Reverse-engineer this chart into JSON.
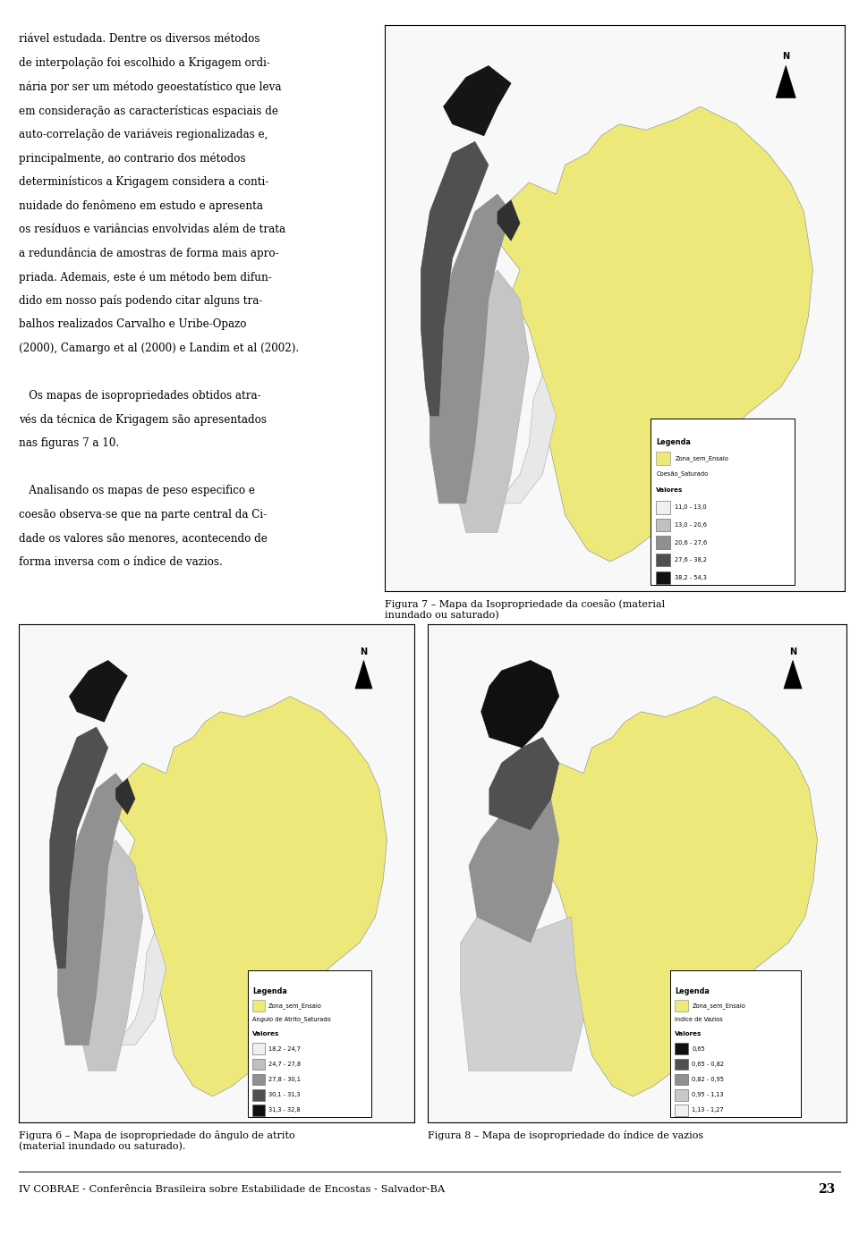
{
  "background_color": "#ffffff",
  "page_width": 9.6,
  "page_height": 13.91,
  "text_lines": [
    "riável estudada. Dentre os diversos métodos",
    "de interpolação foi escolhido a Krigagem ordi-",
    "nária por ser um método geoestatístico que leva",
    "em consideração as características espaciais de",
    "auto-correlação de variáveis regionalizadas e,",
    "principalmente, ao contrario dos métodos",
    "determinísticos a Krigagem considera a conti-",
    "nuidade do fenômeno em estudo e apresenta",
    "os resíduos e variâncias envolvidas além de trata",
    "a redundância de amostras de forma mais apro-",
    "priada. Ademais, este é um método bem difun-",
    "dido em nosso país podendo citar alguns tra-",
    "balhos realizados Carvalho e Uribe-Opazo",
    "(2000), Camargo et al (2000) e Landim et al (2002).",
    "",
    "   Os mapas de isopropriedades obtidos atra-",
    "vés da técnica de Krigagem são apresentados",
    "nas figuras 7 a 10.",
    "",
    "   Analisando os mapas de peso especifico e",
    "coesão observa-se que na parte central da Ci-",
    "dade os valores são menores, acontecendo de",
    "forma inversa com o índice de vazios."
  ],
  "fig7_caption": "Figura 7 – Mapa da Isopropriedade da coesão (material\ninundado ou saturado)",
  "fig6_caption": "Figura 6 – Mapa de isopropriedade do ângulo de atrito\n(material inundado ou saturado).",
  "fig8_caption": "Figura 8 – Mapa de isopropriedade do índice de vazios",
  "footer_text": "IV COBRAE - Conferência Brasileira sobre Estabilidade de Encostas - Salvador-BA",
  "footer_page": "23",
  "legend_yellow": "#EDE87A",
  "map7_legend_items": [
    {
      "label": "11,0 - 13,0",
      "color": "#f0f0f0"
    },
    {
      "label": "13,0 - 20,6",
      "color": "#c0c0c0"
    },
    {
      "label": "20,6 - 27,6",
      "color": "#909090"
    },
    {
      "label": "27,6 - 38,2",
      "color": "#505050"
    },
    {
      "label": "38,2 - 54,3",
      "color": "#101010"
    }
  ],
  "map6_legend_items": [
    {
      "label": "18,2 - 24,7",
      "color": "#f0f0f0"
    },
    {
      "label": "24,7 - 27,8",
      "color": "#c0c0c0"
    },
    {
      "label": "27,8 - 30,1",
      "color": "#909090"
    },
    {
      "label": "30,1 - 31,3",
      "color": "#505050"
    },
    {
      "label": "31,3 - 32,8",
      "color": "#101010"
    }
  ],
  "map8_legend_items": [
    {
      "label": "0,65",
      "color": "#101010"
    },
    {
      "label": "0,65 - 0,82",
      "color": "#505050"
    },
    {
      "label": "0,82 - 0,95",
      "color": "#909090"
    },
    {
      "label": "0,95 - 1,13",
      "color": "#c8c8c8"
    },
    {
      "label": "1,13 - 1,27",
      "color": "#f0f0f0"
    }
  ]
}
